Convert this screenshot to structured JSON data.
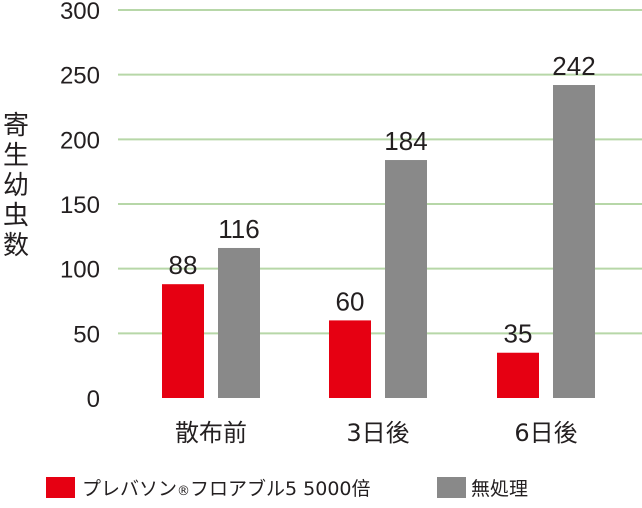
{
  "chart_data": {
    "type": "bar",
    "ylabel": "寄生幼虫数",
    "ylim": [
      0,
      300
    ],
    "yticks": [
      0,
      50,
      100,
      150,
      200,
      250,
      300
    ],
    "categories": [
      "散布前",
      "3日後",
      "6日後"
    ],
    "series": [
      {
        "name": "プレバソン®フロアブル5 5000倍",
        "values": [
          88,
          60,
          35
        ],
        "color": "#e60012"
      },
      {
        "name": "無処理",
        "values": [
          116,
          184,
          242
        ],
        "color": "#898989"
      }
    ],
    "grid": true,
    "gridColor": "#b7d7a8",
    "legend": "bottom"
  }
}
